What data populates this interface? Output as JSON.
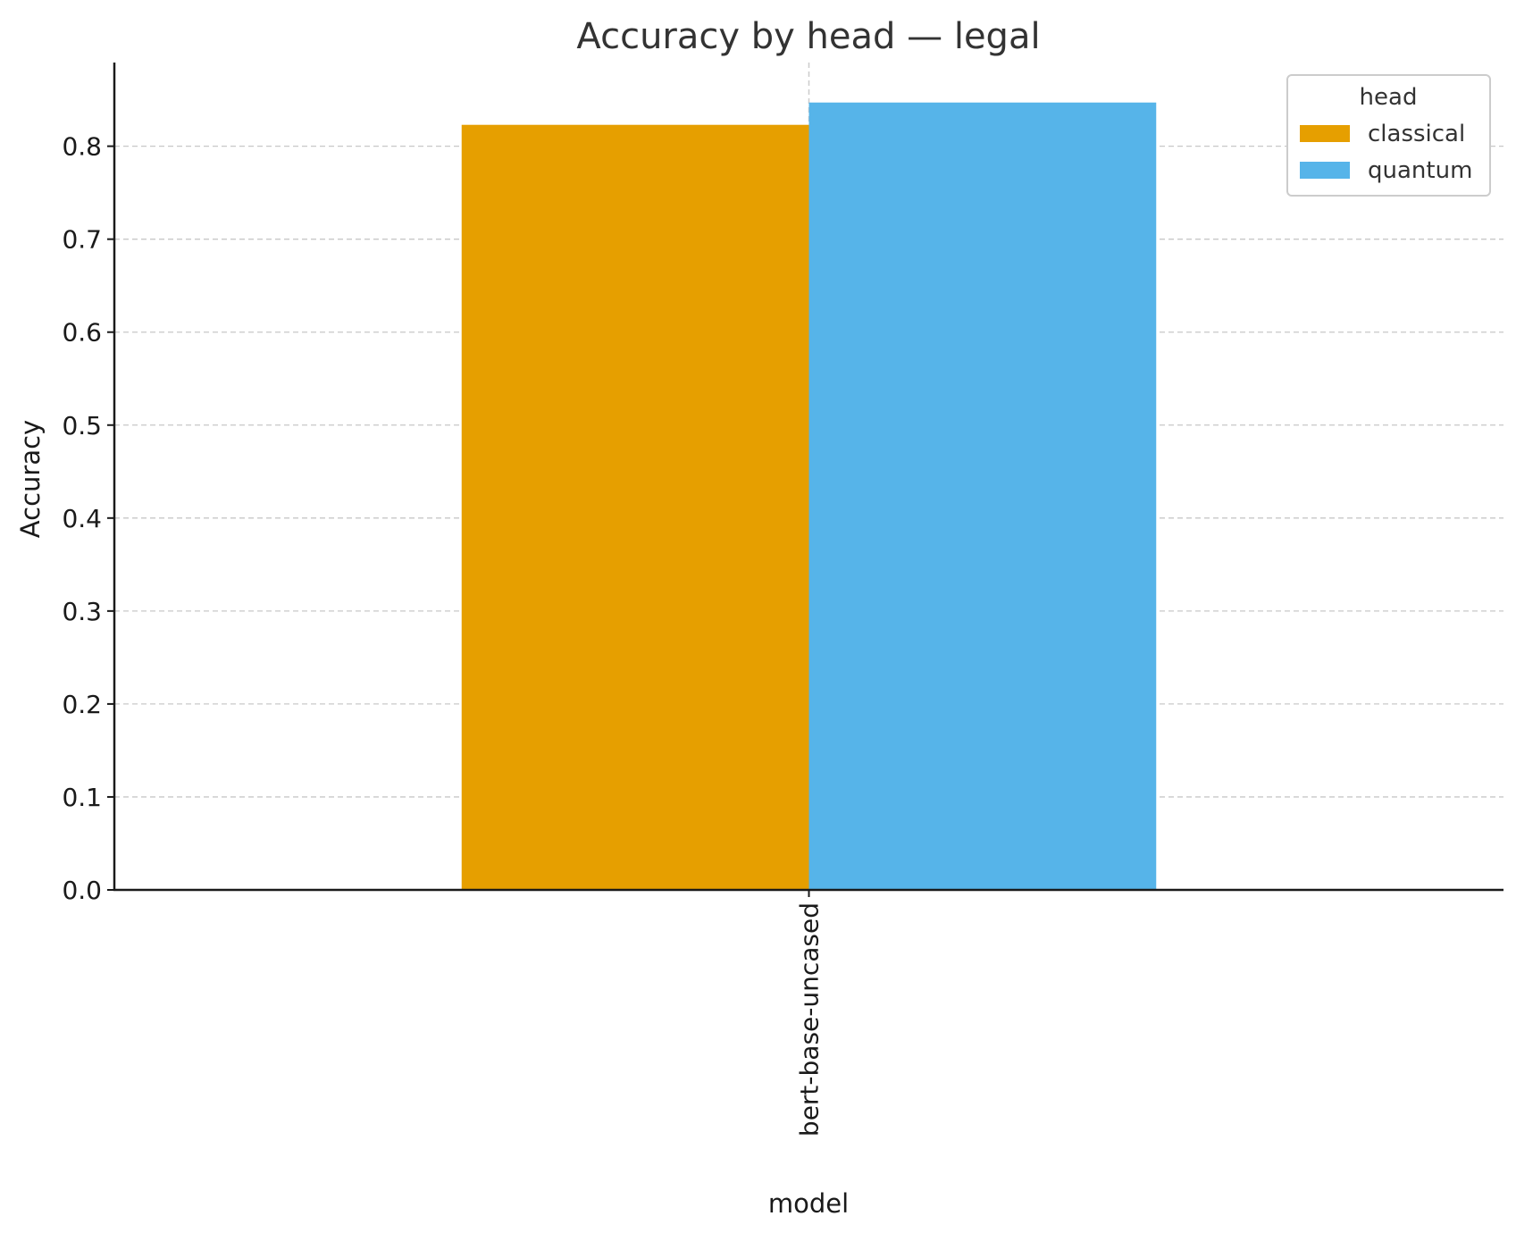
{
  "chart_data": {
    "type": "bar",
    "title": "Accuracy by head — legal",
    "xlabel": "model",
    "ylabel": "Accuracy",
    "categories": [
      "bert-base-uncased"
    ],
    "series": [
      {
        "name": "classical",
        "values": [
          0.823
        ],
        "color": "#E69F00"
      },
      {
        "name": "quantum",
        "values": [
          0.847
        ],
        "color": "#56B4E9"
      }
    ],
    "ylim": [
      0,
      0.89
    ],
    "yticks": [
      0.0,
      0.1,
      0.2,
      0.3,
      0.4,
      0.5,
      0.6,
      0.7,
      0.8
    ],
    "ytick_labels": [
      "0.0",
      "0.1",
      "0.2",
      "0.3",
      "0.4",
      "0.5",
      "0.6",
      "0.7",
      "0.8"
    ],
    "grid": "y-dashed",
    "legend": {
      "title": "head",
      "position": "top-right"
    }
  }
}
